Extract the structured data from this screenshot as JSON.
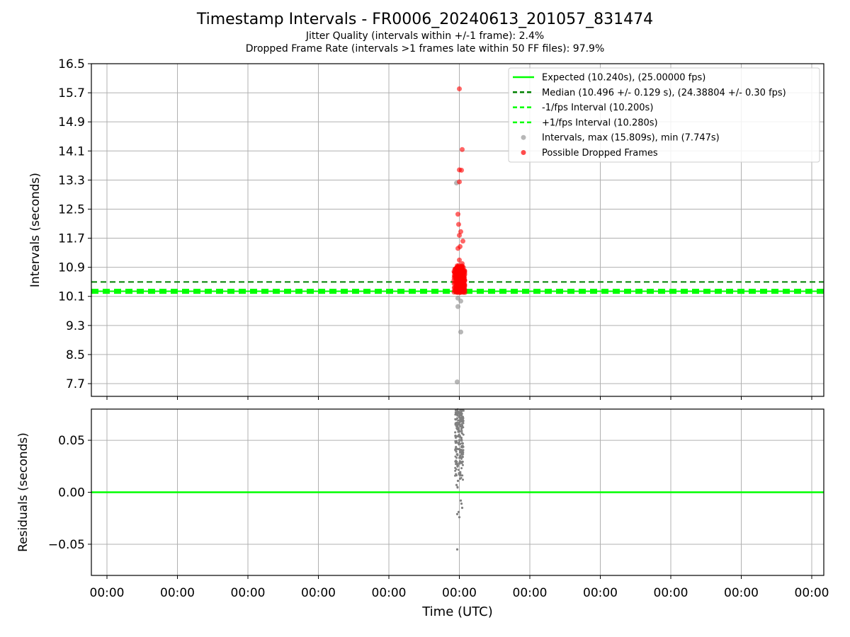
{
  "chart_data": [
    {
      "type": "scatter",
      "title": "Timestamp Intervals - FR0006_20240613_201057_831474",
      "subtitle_1": "Jitter Quality (intervals within +/-1 frame): 2.4%",
      "subtitle_2": "Dropped Frame Rate (intervals >1 frames late within 50 FF files): 97.9%",
      "xlabel": "",
      "ylabel": "Intervals (seconds)",
      "ylim": [
        7.35,
        16.5
      ],
      "yticks": [
        "7.7",
        "8.5",
        "9.3",
        "10.1",
        "10.9",
        "11.7",
        "12.5",
        "13.3",
        "14.1",
        "14.9",
        "15.7",
        "16.5"
      ],
      "grid": true,
      "legend_position": "top-right",
      "colors": {
        "expected": "#00ff00",
        "median": "#008000",
        "fps_bounds": "#00ff00",
        "intervals": "#999999",
        "dropped": "#ff0000"
      },
      "reference_lines": [
        {
          "name": "Expected (10.240s), (25.00000 fps)",
          "y": 10.24,
          "style": "solid"
        },
        {
          "name": "Median (10.496 +/- 0.129 s), (24.38804 +/- 0.30 fps)",
          "y": 10.496,
          "style": "dashed"
        },
        {
          "name": "-1/fps Interval (10.200s)",
          "y": 10.2,
          "style": "dashed"
        },
        {
          "name": "+1/fps Interval (10.280s)",
          "y": 10.28,
          "style": "dashed"
        }
      ],
      "series": [
        {
          "name": "Intervals, max (15.809s), min (7.747s)",
          "points": [
            [
              -0.03,
              7.747
            ],
            [
              0.02,
              9.12
            ],
            [
              0.02,
              9.97
            ],
            [
              -0.02,
              9.82
            ],
            [
              -0.02,
              10.05
            ],
            [
              -0.04,
              13.22
            ]
          ]
        },
        {
          "name": "Possible Dropped Frames",
          "points": [
            [
              0.0,
              15.809
            ],
            [
              0.04,
              14.14
            ],
            [
              0.0,
              13.58
            ],
            [
              0.03,
              13.57
            ],
            [
              0.0,
              13.25
            ],
            [
              -0.02,
              12.36
            ],
            [
              -0.01,
              12.08
            ],
            [
              0.02,
              11.88
            ],
            [
              0.0,
              11.78
            ],
            [
              0.05,
              11.62
            ],
            [
              -0.02,
              11.42
            ],
            [
              0.01,
              11.47
            ],
            [
              0.0,
              11.1
            ],
            [
              0.04,
              11.0
            ],
            [
              -0.01,
              10.95
            ],
            [
              0.02,
              10.85
            ]
          ]
        }
      ]
    },
    {
      "type": "scatter",
      "xlabel": "Time (UTC)",
      "ylabel": "Residuals (seconds)",
      "ylim": [
        -0.08,
        0.08
      ],
      "yticks": [
        "−0.05",
        "0.00",
        "0.05"
      ],
      "xticks": [
        "00:00",
        "00:00",
        "00:00",
        "00:00",
        "00:00",
        "00:00",
        "00:00",
        "00:00",
        "00:00",
        "00:00",
        "00:00"
      ],
      "grid": true,
      "zero_line_color": "#00ff00",
      "points_color": "#808080",
      "series": [
        {
          "name": "Residuals",
          "points": [
            [
              -0.03,
              -0.055
            ],
            [
              0.0,
              -0.024
            ],
            [
              -0.03,
              -0.021
            ],
            [
              -0.01,
              -0.019
            ],
            [
              0.04,
              -0.015
            ],
            [
              0.03,
              -0.011
            ],
            [
              0.02,
              -0.008
            ],
            [
              -0.04,
              0.007
            ],
            [
              -0.02,
              0.011
            ],
            [
              0.01,
              0.013
            ]
          ]
        }
      ]
    }
  ]
}
